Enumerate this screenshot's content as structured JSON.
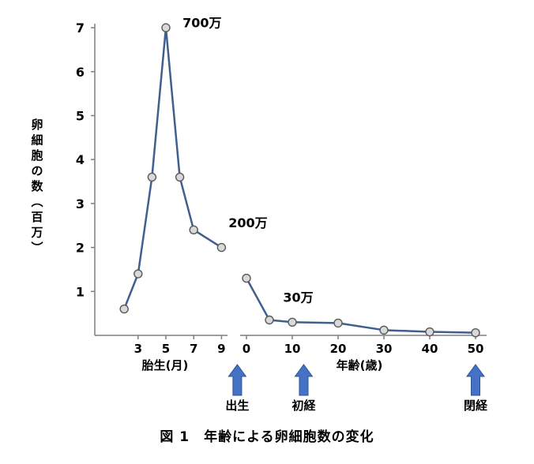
{
  "figure": {
    "caption": "図 1　年齢による卵細胞数の変化"
  },
  "chart_data": {
    "type": "line",
    "title": "図 1 年齢による卵細胞数の変化",
    "ylabel": "卵細胞の数（百万）",
    "ylim": [
      0,
      7
    ],
    "yticks": [
      1,
      2,
      3,
      4,
      5,
      6,
      7
    ],
    "grid": false,
    "legend": "none",
    "segments": [
      {
        "name": "fetal-months",
        "xlabel": "胎生(月)",
        "xticks": [
          3,
          5,
          7,
          9
        ],
        "points": [
          [
            2,
            0.6
          ],
          [
            3,
            1.4
          ],
          [
            4,
            3.6
          ],
          [
            5,
            7.0
          ],
          [
            6,
            3.6
          ],
          [
            7,
            2.4
          ],
          [
            9,
            2.0
          ]
        ]
      },
      {
        "name": "age-years",
        "xlabel": "年齢(歳)",
        "xticks": [
          0,
          10,
          20,
          30,
          40,
          50
        ],
        "points": [
          [
            0,
            1.3
          ],
          [
            5,
            0.35
          ],
          [
            10,
            0.3
          ],
          [
            20,
            0.28
          ],
          [
            30,
            0.12
          ],
          [
            40,
            0.08
          ],
          [
            50,
            0.06
          ]
        ]
      }
    ],
    "annotations": [
      {
        "text": "700万",
        "segment": 0,
        "x": 6.2,
        "y": 7.1,
        "anchor": "start"
      },
      {
        "text": "200万",
        "segment": 0,
        "x": 9.5,
        "y": 2.55,
        "anchor": "start"
      },
      {
        "text": "30万",
        "segment": 1,
        "x": 8,
        "y": 0.85,
        "anchor": "start"
      }
    ],
    "events": [
      {
        "label": "出生",
        "segment": 1,
        "x": -2
      },
      {
        "label": "初経",
        "segment": 1,
        "x": 12.5
      },
      {
        "label": "閉経",
        "segment": 1,
        "x": 50
      }
    ],
    "colors": {
      "line": "#3f5f8f",
      "marker_fill": "#d9d9d9",
      "marker_stroke": "#595959",
      "axis": "#7f7f7f",
      "text": "#000000",
      "arrow_fill": "#4472c4",
      "arrow_stroke": "#2e5395"
    }
  }
}
